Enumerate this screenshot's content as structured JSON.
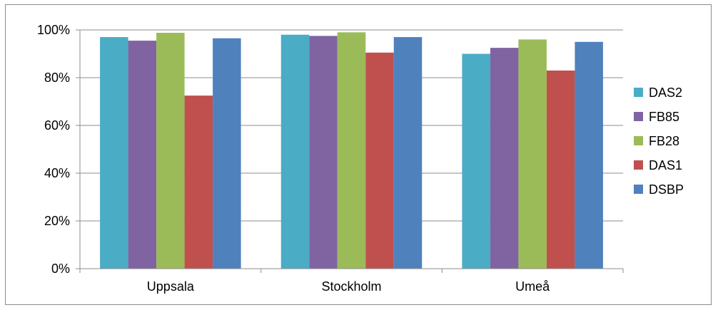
{
  "chart_data": {
    "type": "bar",
    "categories": [
      "Uppsala",
      "Stockholm",
      "Umeå"
    ],
    "series": [
      {
        "name": "DAS2",
        "color": "#4bacc6",
        "values": [
          97,
          98,
          90
        ]
      },
      {
        "name": "FB85",
        "color": "#8064a2",
        "values": [
          95.5,
          97.5,
          92.5
        ]
      },
      {
        "name": "FB28",
        "color": "#9bbb59",
        "values": [
          98.8,
          99,
          96
        ]
      },
      {
        "name": "DAS1",
        "color": "#c0504d",
        "values": [
          72.5,
          90.5,
          83
        ]
      },
      {
        "name": "DSBP",
        "color": "#4f81bd",
        "values": [
          96.5,
          97,
          95
        ]
      }
    ],
    "y_ticks": [
      "0%",
      "20%",
      "40%",
      "60%",
      "80%",
      "100%"
    ],
    "ylim": [
      0,
      100
    ],
    "grid": true,
    "legend_position": "right"
  }
}
